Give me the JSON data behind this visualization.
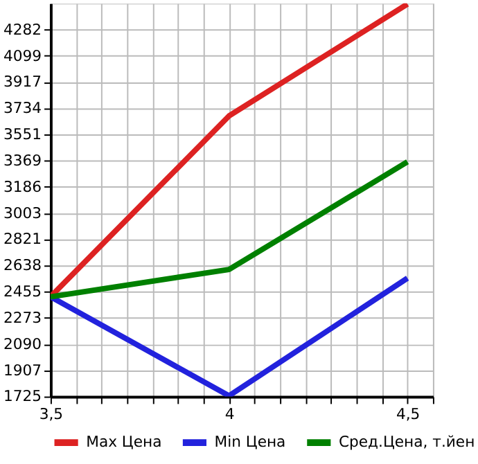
{
  "chart_data": {
    "type": "line",
    "x": [
      3.5,
      4,
      4.5
    ],
    "series": [
      {
        "name": "Max Цена",
        "color": "#dd2222",
        "values": [
          2420,
          3680,
          4460
        ]
      },
      {
        "name": "Min Цена",
        "color": "#2222dd",
        "values": [
          2420,
          1730,
          2550
        ]
      },
      {
        "name": "Сред.Цена, т.йен",
        "color": "#008000",
        "values": [
          2420,
          2610,
          3360
        ]
      }
    ],
    "xlim": [
      3.5,
      4.5714
    ],
    "xticks": [
      {
        "value": 3.5,
        "label": "3,5"
      },
      {
        "value": 3.5714,
        "label": null
      },
      {
        "value": 3.6429,
        "label": null
      },
      {
        "value": 3.7143,
        "label": null
      },
      {
        "value": 3.7857,
        "label": null
      },
      {
        "value": 3.8571,
        "label": null
      },
      {
        "value": 3.9286,
        "label": null
      },
      {
        "value": 4,
        "label": "4"
      },
      {
        "value": 4.0714,
        "label": null
      },
      {
        "value": 4.1429,
        "label": null
      },
      {
        "value": 4.2143,
        "label": null
      },
      {
        "value": 4.2857,
        "label": null
      },
      {
        "value": 4.3571,
        "label": null
      },
      {
        "value": 4.4286,
        "label": null
      },
      {
        "value": 4.5,
        "label": "4,5"
      },
      {
        "value": 4.5714,
        "label": null
      }
    ],
    "ylim": [
      1725,
      4465
    ],
    "yticks": [
      1725,
      1907,
      2090,
      2273,
      2455,
      2638,
      2821,
      3003,
      3186,
      3369,
      3551,
      3734,
      3917,
      4099,
      4282
    ],
    "grid": true,
    "legend": "bottom",
    "marker": "none",
    "line_style": "solid"
  }
}
